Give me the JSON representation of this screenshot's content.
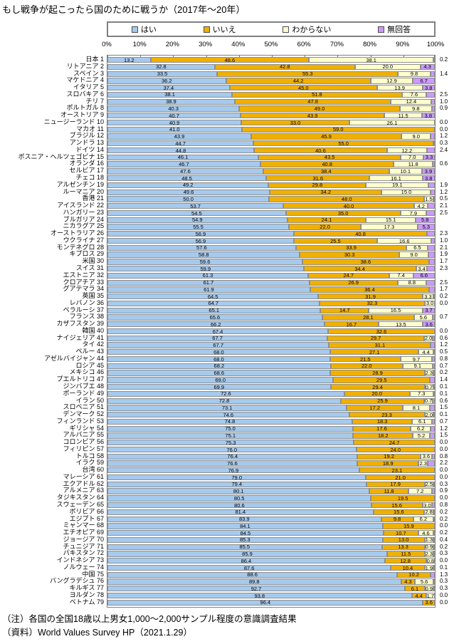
{
  "title": "もし戦争が起こったら国のために戦うか（2017年～20年）",
  "legend": [
    {
      "label": "はい",
      "key": "yes"
    },
    {
      "label": "いいえ",
      "key": "no"
    },
    {
      "label": "わからない",
      "key": "dk"
    },
    {
      "label": "無回答",
      "key": "na"
    }
  ],
  "colors": {
    "yes": "#A6CAEE",
    "no": "#F0B000",
    "dk": "#FFFFCC",
    "na": "#CC99FF",
    "border": "#8f8f8f"
  },
  "notes": [
    "（注）各国の全国18歳以上男女1,000～2,000サンプル程度の意識調査結果",
    "（資料）World Values Survey HP（2021.1.29）"
  ],
  "chart_data": {
    "type": "bar",
    "stacked": true,
    "orientation": "horizontal",
    "title": "もし戦争が起こったら国のために戦うか（2017年～20年）",
    "xlabel": "",
    "ylabel": "",
    "xlim": [
      0,
      100
    ],
    "x_ticks": [
      "0%",
      "10%",
      "20%",
      "30%",
      "40%",
      "50%",
      "60%",
      "70%",
      "80%",
      "90%",
      "100%"
    ],
    "legend_position": "top",
    "grid": false,
    "series_names": [
      "はい",
      "いいえ",
      "わからない",
      "無回答"
    ],
    "na_inside_threshold": 3.3,
    "rows": [
      {
        "rank": 1,
        "country": "日本",
        "yes": 13.2,
        "no": 48.6,
        "dk": 38.1,
        "na": 0.2
      },
      {
        "rank": 2,
        "country": "リトアニア",
        "yes": 32.8,
        "no": 42.8,
        "dk": 20.0,
        "na": 4.3
      },
      {
        "rank": 3,
        "country": "スペイン",
        "yes": 33.5,
        "no": 55.3,
        "dk": 9.8,
        "na": 1.4
      },
      {
        "rank": 4,
        "country": "マケドニア",
        "yes": 36.2,
        "no": 44.2,
        "dk": 12.9,
        "na": 6.7
      },
      {
        "rank": 5,
        "country": "イタリア",
        "yes": 37.4,
        "no": 45.0,
        "dk": 13.9,
        "na": 3.8
      },
      {
        "rank": 6,
        "country": "スロバキア",
        "yes": 38.1,
        "no": 51.8,
        "dk": 7.6,
        "na": 2.5
      },
      {
        "rank": 7,
        "country": "チリ",
        "yes": 38.9,
        "no": 47.8,
        "dk": 12.4,
        "na": 1.0
      },
      {
        "rank": 8,
        "country": "ポルトガル",
        "yes": 40.3,
        "no": 49.0,
        "dk": 9.8,
        "na": 0.9
      },
      {
        "rank": 9,
        "country": "オーストリア",
        "yes": 40.7,
        "no": 43.9,
        "dk": 11.5,
        "na": 3.8
      },
      {
        "rank": 10,
        "country": "ニュージーランド",
        "yes": 40.9,
        "no": 33.0,
        "dk": 26.1,
        "na": 0.0
      },
      {
        "rank": 11,
        "country": "マカオ",
        "yes": 41.0,
        "no": 59.0,
        "dk": 0,
        "na": 0.0
      },
      {
        "rank": 12,
        "country": "ブラジル",
        "yes": 43.9,
        "no": 45.9,
        "dk": 9.0,
        "na": 1.2
      },
      {
        "rank": 13,
        "country": "アンドラ",
        "yes": 44.7,
        "no": 55.0,
        "dk": 0,
        "na": 0.3
      },
      {
        "rank": 14,
        "country": "ドイツ",
        "yes": 44.8,
        "no": 40.6,
        "dk": 12.2,
        "na": 2.4
      },
      {
        "rank": 15,
        "country": "ボスニア・ヘルツェゴビナ",
        "yes": 46.1,
        "no": 43.5,
        "dk": 7.0,
        "na": 3.3
      },
      {
        "rank": 16,
        "country": "オランダ",
        "yes": 46.7,
        "no": 40.8,
        "dk": 11.8,
        "na": 0.6
      },
      {
        "rank": 17,
        "country": "セルビア",
        "yes": 47.6,
        "no": 38.4,
        "dk": 10.1,
        "na": 3.9
      },
      {
        "rank": 18,
        "country": "チェコ",
        "yes": 48.5,
        "no": 31.6,
        "dk": 16.1,
        "na": 3.8
      },
      {
        "rank": 19,
        "country": "アルゼンチン",
        "yes": 49.2,
        "no": 29.8,
        "dk": 19.1,
        "na": 1.9
      },
      {
        "rank": 20,
        "country": "ルーマニア",
        "yes": 49.6,
        "no": 34.2,
        "dk": 15.0,
        "na": 1.2
      },
      {
        "rank": 21,
        "country": "香港",
        "yes": 50.0,
        "no": 48.0,
        "dk": 1.5,
        "na": 0.5
      },
      {
        "rank": 22,
        "country": "アイスランド",
        "yes": 53.7,
        "no": 40.0,
        "dk": 4.2,
        "na": 2.1
      },
      {
        "rank": 23,
        "country": "ハンガリー",
        "yes": 54.5,
        "no": 35.0,
        "dk": 7.9,
        "na": 2.5
      },
      {
        "rank": 24,
        "country": "ブルガリア",
        "yes": 54.9,
        "no": 24.1,
        "dk": 15.1,
        "na": 5.8
      },
      {
        "rank": 25,
        "country": "ニカラグア",
        "yes": 55.5,
        "no": 22.0,
        "dk": 17.3,
        "na": 5.3
      },
      {
        "rank": 26,
        "country": "オーストラリア",
        "yes": 56.9,
        "no": 40.8,
        "dk": 0,
        "na": 2.3
      },
      {
        "rank": 27,
        "country": "ウクライナ",
        "yes": 56.9,
        "no": 25.5,
        "dk": 16.6,
        "na": 1.0
      },
      {
        "rank": 28,
        "country": "モンテネグロ",
        "yes": 57.6,
        "no": 33.9,
        "dk": 6.5,
        "na": 2.1
      },
      {
        "rank": 29,
        "country": "キプロス",
        "yes": 58.8,
        "no": 30.3,
        "dk": 9.0,
        "na": 1.9
      },
      {
        "rank": 30,
        "country": "米国",
        "yes": 59.6,
        "no": 38.6,
        "dk": 0,
        "na": 1.7
      },
      {
        "rank": 31,
        "country": "スイス",
        "yes": 59.9,
        "no": 34.4,
        "dk": 3.4,
        "na": 2.3
      },
      {
        "rank": 32,
        "country": "エストニア",
        "yes": 61.3,
        "no": 24.7,
        "dk": 7.4,
        "na": 6.6
      },
      {
        "rank": 33,
        "country": "クロアチア",
        "yes": 61.7,
        "no": 26.9,
        "dk": 8.8,
        "na": 2.5
      },
      {
        "rank": 34,
        "country": "グアテマラ",
        "yes": 61.9,
        "no": 36.4,
        "dk": 0,
        "na": 1.7
      },
      {
        "rank": 35,
        "country": "英国",
        "yes": 64.5,
        "no": 31.9,
        "dk": 3.3,
        "na": 0.2
      },
      {
        "rank": 36,
        "country": "レバノン",
        "yes": 64.7,
        "no": 32.3,
        "dk": 3.0,
        "na": 0.0
      },
      {
        "rank": 37,
        "country": "ベラルーシ",
        "yes": 65.1,
        "no": 14.7,
        "dk": 16.5,
        "na": 3.7
      },
      {
        "rank": 38,
        "country": "フランス",
        "yes": 65.6,
        "no": 28.1,
        "dk": 5.6,
        "na": 0.7
      },
      {
        "rank": 39,
        "country": "カザフスタン",
        "yes": 66.2,
        "no": 16.7,
        "dk": 13.5,
        "na": 3.6
      },
      {
        "rank": 40,
        "country": "韓国",
        "yes": 67.4,
        "no": 32.6,
        "dk": 0,
        "na": 0.0
      },
      {
        "rank": 41,
        "country": "ナイジェリア",
        "yes": 67.7,
        "no": 29.7,
        "dk": 2.0,
        "na": 0.6
      },
      {
        "rank": 42,
        "country": "タイ",
        "yes": 67.7,
        "no": 31.1,
        "dk": 0,
        "na": 1.2
      },
      {
        "rank": 43,
        "country": "ペルー",
        "yes": 68.0,
        "no": 27.1,
        "dk": 4.4,
        "na": 0.5
      },
      {
        "rank": 44,
        "country": "アゼルバイジャン",
        "yes": 68.0,
        "no": 21.5,
        "dk": 9.7,
        "na": 0.8
      },
      {
        "rank": 45,
        "country": "ロシア",
        "yes": 68.2,
        "no": 22.0,
        "dk": 9.1,
        "na": 0.7
      },
      {
        "rank": 46,
        "country": "メキシコ",
        "yes": 68.6,
        "no": 28.9,
        "dk": 2.3,
        "na": 0.2
      },
      {
        "rank": 47,
        "country": "プエルトリコ",
        "yes": 69.0,
        "no": 29.5,
        "dk": 0,
        "na": 1.4
      },
      {
        "rank": 48,
        "country": "ジンバブエ",
        "yes": 69.9,
        "no": 29.4,
        "dk": 0.7,
        "na": 0.1
      },
      {
        "rank": 49,
        "country": "ポーランド",
        "yes": 72.6,
        "no": 20.0,
        "dk": 7.3,
        "na": 0.1
      },
      {
        "rank": 50,
        "country": "イラン",
        "yes": 72.8,
        "no": 25.9,
        "dk": 0.7,
        "na": 0.6
      },
      {
        "rank": 51,
        "country": "スロベニア",
        "yes": 73.1,
        "no": 17.2,
        "dk": 8.1,
        "na": 1.5
      },
      {
        "rank": 52,
        "country": "デンマーク",
        "yes": 74.6,
        "no": 23.3,
        "dk": 2.0,
        "na": 0.1
      },
      {
        "rank": 53,
        "country": "フィンランド",
        "yes": 74.8,
        "no": 18.3,
        "dk": 6.1,
        "na": 0.7
      },
      {
        "rank": 54,
        "country": "ギリシャ",
        "yes": 75.0,
        "no": 17.6,
        "dk": 6.2,
        "na": 1.2
      },
      {
        "rank": 55,
        "country": "アルバニア",
        "yes": 75.1,
        "no": 18.2,
        "dk": 5.2,
        "na": 1.5
      },
      {
        "rank": 56,
        "country": "コロンビア",
        "yes": 75.3,
        "no": 24.7,
        "dk": 0,
        "na": 0.0
      },
      {
        "rank": 57,
        "country": "フィリピン",
        "yes": 76.0,
        "no": 24.0,
        "dk": 0,
        "na": 0.0
      },
      {
        "rank": 58,
        "country": "トルコ",
        "yes": 76.4,
        "no": 19.2,
        "dk": 3.6,
        "na": 0.8
      },
      {
        "rank": 59,
        "country": "イラク",
        "yes": 76.6,
        "no": 18.9,
        "dk": 2.3,
        "na": 2.2
      },
      {
        "rank": 60,
        "country": "台湾",
        "yes": 76.9,
        "no": 23.1,
        "dk": 0,
        "na": 0.0
      },
      {
        "rank": 61,
        "country": "マレーシア",
        "yes": 79.0,
        "no": 21.0,
        "dk": 0,
        "na": 0.0
      },
      {
        "rank": 62,
        "country": "エクアドル",
        "yes": 79.4,
        "no": 17.9,
        "dk": 2.5,
        "na": 0.3
      },
      {
        "rank": 63,
        "country": "アルメニア",
        "yes": 80.1,
        "no": 11.8,
        "dk": 7.2,
        "na": 0.9
      },
      {
        "rank": 64,
        "country": "タジキスタン",
        "yes": 80.5,
        "no": 19.5,
        "dk": 0,
        "na": 0.0
      },
      {
        "rank": 65,
        "country": "スウェーデン",
        "yes": 80.6,
        "no": 15.6,
        "dk": 3.0,
        "na": 0.8
      },
      {
        "rank": 66,
        "country": "ボリビア",
        "yes": 81.4,
        "no": 15.6,
        "dk": 2.8,
        "na": 0.2
      },
      {
        "rank": 67,
        "country": "エジプト",
        "yes": 83.9,
        "no": 9.8,
        "dk": 6.2,
        "na": 0.2
      },
      {
        "rank": 68,
        "country": "ミャンマー",
        "yes": 84.1,
        "no": 15.9,
        "dk": 0,
        "na": 0.0
      },
      {
        "rank": 69,
        "country": "エチオピア",
        "yes": 84.5,
        "no": 10.7,
        "dk": 4.6,
        "na": 0.2
      },
      {
        "rank": 70,
        "country": "ジョージア",
        "yes": 85.3,
        "no": 13.0,
        "dk": 1.3,
        "na": 0.4
      },
      {
        "rank": 71,
        "country": "チュニジア",
        "yes": 85.5,
        "no": 13.3,
        "dk": 0.9,
        "na": 0.2
      },
      {
        "rank": 72,
        "country": "パキスタン",
        "yes": 85.9,
        "no": 11.5,
        "dk": 2.3,
        "na": 0.3
      },
      {
        "rank": 73,
        "country": "インドネシア",
        "yes": 86.4,
        "no": 12.8,
        "dk": 0.8,
        "na": 0.0
      },
      {
        "rank": 74,
        "country": "ノルウェー",
        "yes": 87.6,
        "no": 10.4,
        "dk": 1.9,
        "na": 0.1
      },
      {
        "rank": 75,
        "country": "中国",
        "yes": 88.6,
        "no": 10.2,
        "dk": 0,
        "na": 1.3
      },
      {
        "rank": 76,
        "country": "バングラデシュ",
        "yes": 89.8,
        "no": 4.3,
        "dk": 5.6,
        "na": 0.3
      },
      {
        "rank": 77,
        "country": "キルギス",
        "yes": 92.7,
        "no": 6.1,
        "dk": 0.9,
        "na": 0.3
      },
      {
        "rank": 78,
        "country": "ヨルダン",
        "yes": 93.8,
        "no": 4.4,
        "dk": 1.7,
        "na": 0.0
      },
      {
        "rank": 79,
        "country": "ベトナム",
        "yes": 96.4,
        "no": 3.6,
        "dk": 0,
        "na": 0.0
      }
    ]
  }
}
